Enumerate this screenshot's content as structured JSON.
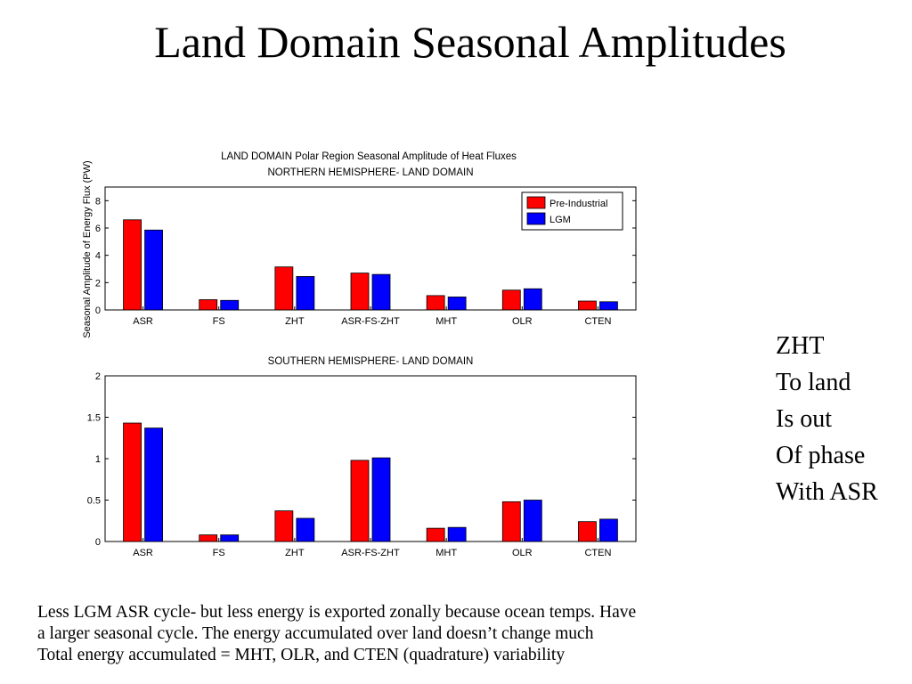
{
  "slide": {
    "title": "Land Domain Seasonal Amplitudes",
    "side_note": [
      "ZHT",
      "To land",
      "Is out",
      "Of phase",
      "With ASR"
    ],
    "notes": [
      "Less LGM ASR cycle- but less energy is exported zonally because ocean temps. Have",
      "a larger seasonal cycle. The energy accumulated over land doesn’t change much",
      "Total energy accumulated = MHT, OLR, and CTEN (quadrature) variability"
    ]
  },
  "figure": {
    "title": "LAND DOMAIN Polar Region Seasonal Amplitude of Heat Fluxes",
    "ylabel": "Seasonal Amplitude of Energy Flux (PW)"
  },
  "colors": {
    "pre_industrial": "#ff0000",
    "lgm": "#0000ff"
  },
  "chart_data": [
    {
      "type": "bar",
      "title": "NORTHERN HEMISPHERE- LAND DOMAIN",
      "categories": [
        "ASR",
        "FS",
        "ZHT",
        "ASR-FS-ZHT",
        "MHT",
        "OLR",
        "CTEN"
      ],
      "series": [
        {
          "name": "Pre-Industrial",
          "values": [
            6.6,
            0.75,
            3.15,
            2.7,
            1.05,
            1.45,
            0.65
          ]
        },
        {
          "name": "LGM",
          "values": [
            5.85,
            0.7,
            2.45,
            2.6,
            0.95,
            1.55,
            0.6
          ]
        }
      ],
      "ylim": [
        0,
        9
      ],
      "yticks": [
        "0",
        "2",
        "4",
        "6",
        "8"
      ],
      "legend": "top-right"
    },
    {
      "type": "bar",
      "title": "SOUTHERN HEMISPHERE- LAND DOMAIN",
      "categories": [
        "ASR",
        "FS",
        "ZHT",
        "ASR-FS-ZHT",
        "MHT",
        "OLR",
        "CTEN"
      ],
      "series": [
        {
          "name": "Pre-Industrial",
          "values": [
            1.43,
            0.08,
            0.37,
            0.98,
            0.16,
            0.48,
            0.24
          ]
        },
        {
          "name": "LGM",
          "values": [
            1.37,
            0.08,
            0.28,
            1.01,
            0.17,
            0.5,
            0.27
          ]
        }
      ],
      "ylim": [
        0,
        2
      ],
      "yticks": [
        "0",
        "0.5",
        "1",
        "1.5",
        "2"
      ],
      "legend": "none"
    }
  ]
}
